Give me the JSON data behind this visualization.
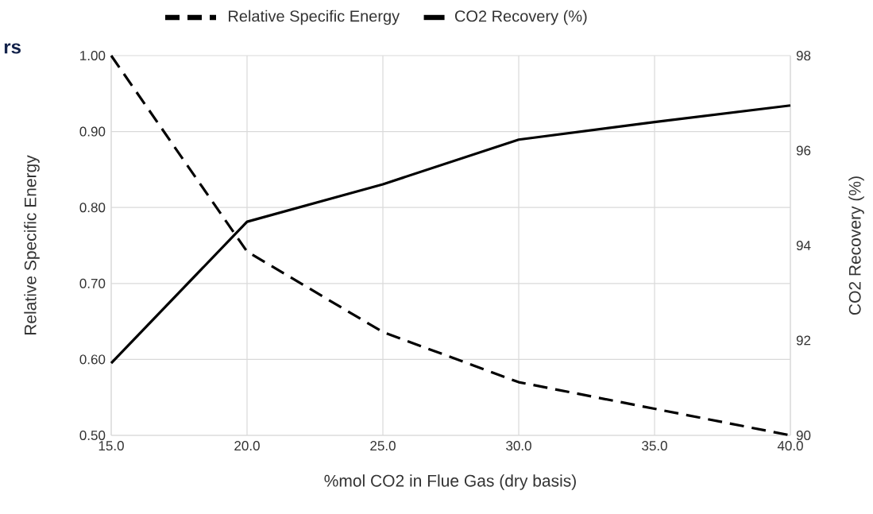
{
  "chart_data": {
    "type": "line",
    "annotations": [
      "rs"
    ],
    "xlabel": "%mol CO2 in Flue Gas (dry basis)",
    "ylabel": "Relative Specific Energy",
    "y2label": "CO2 Recovery (%)",
    "x": [
      15,
      20,
      25,
      30,
      35,
      40
    ],
    "series": [
      {
        "name": "Relative Specific Energy",
        "color": "#000000",
        "line_style": "dashed",
        "values": [
          1.0,
          0.742,
          0.636,
          0.57,
          0.535,
          0.5
        ]
      },
      {
        "name": "CO2 Recovery (%)",
        "color": "#000000",
        "line_style": "solid",
        "axis": "y2",
        "values": [
          91.52,
          94.5,
          95.29,
          96.23,
          96.6,
          96.95
        ]
      }
    ],
    "xlim": [
      15,
      40
    ],
    "xticks": [
      {
        "value": 15,
        "label": "15.0"
      },
      {
        "value": 20,
        "label": "20.0"
      },
      {
        "value": 25,
        "label": "25.0"
      },
      {
        "value": 30,
        "label": "30.0"
      },
      {
        "value": 35,
        "label": "35.0"
      },
      {
        "value": 40,
        "label": "40.0"
      }
    ],
    "ylim": [
      0.5,
      1.0
    ],
    "yticks": [
      {
        "value": 0.5,
        "label": "0.50"
      },
      {
        "value": 0.6,
        "label": "0.60"
      },
      {
        "value": 0.7,
        "label": "0.70"
      },
      {
        "value": 0.8,
        "label": "0.80"
      },
      {
        "value": 0.9,
        "label": "0.90"
      },
      {
        "value": 1.0,
        "label": "1.00"
      }
    ],
    "y2lim": [
      90,
      98
    ],
    "y2ticks": [
      90,
      92,
      94,
      96,
      98
    ],
    "grid": true,
    "legend": "top"
  }
}
